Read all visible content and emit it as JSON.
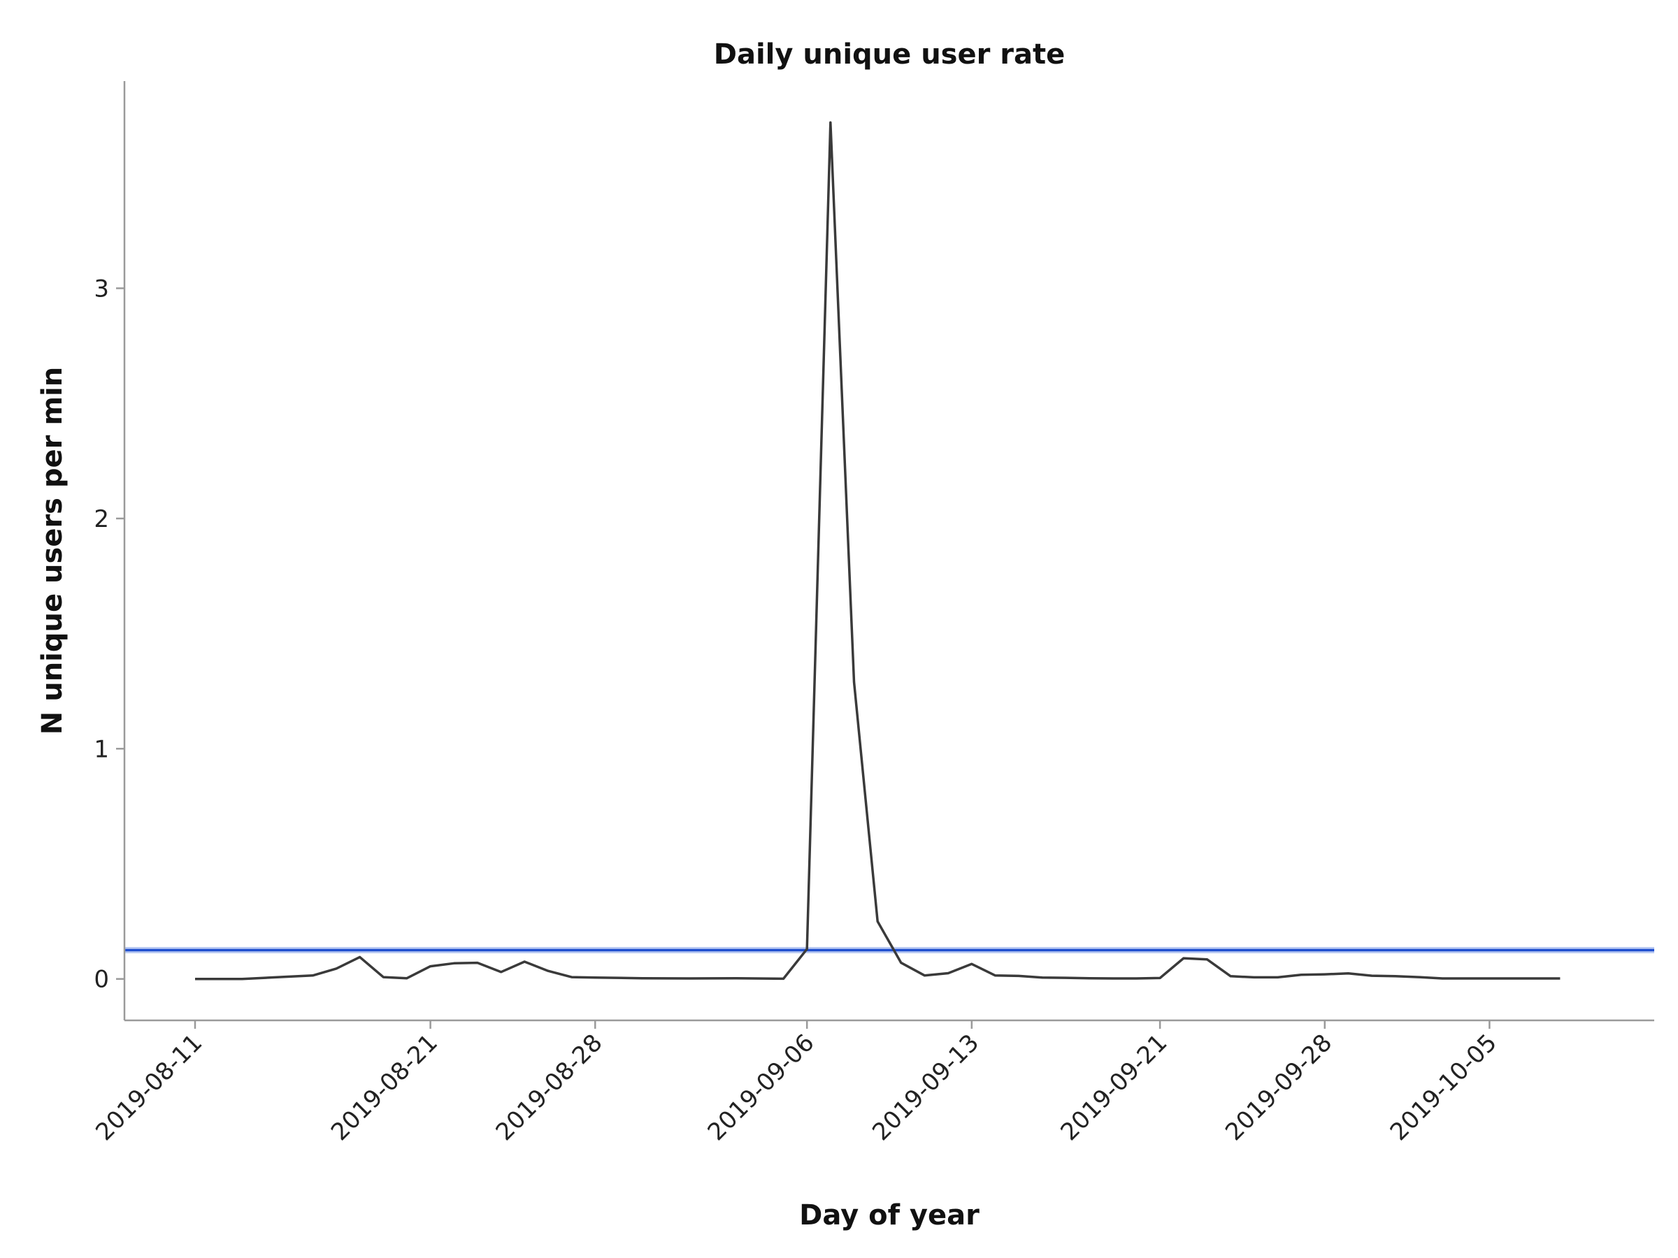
{
  "chart_data": {
    "type": "line",
    "title": "Daily unique user rate",
    "xlabel": "Day of year",
    "ylabel": "N unique users per min",
    "x_tick_labels": [
      "2019-08-11",
      "2019-08-21",
      "2019-08-28",
      "2019-09-06",
      "2019-09-13",
      "2019-09-21",
      "2019-09-28",
      "2019-10-05"
    ],
    "y_ticks": [
      0,
      1,
      2,
      3
    ],
    "ylim": [
      -0.18,
      3.9
    ],
    "xlim": [
      "2019-08-08",
      "2019-10-12"
    ],
    "grid": false,
    "reference_line": {
      "y": 0.125,
      "color": "#1f4fcf"
    },
    "series": [
      {
        "color": "#3a3a3a",
        "x": [
          "2019-08-11",
          "2019-08-13",
          "2019-08-15",
          "2019-08-16",
          "2019-08-17",
          "2019-08-18",
          "2019-08-19",
          "2019-08-20",
          "2019-08-21",
          "2019-08-22",
          "2019-08-23",
          "2019-08-24",
          "2019-08-25",
          "2019-08-26",
          "2019-08-27",
          "2019-08-28",
          "2019-08-30",
          "2019-09-01",
          "2019-09-03",
          "2019-09-05",
          "2019-09-06",
          "2019-09-07",
          "2019-09-08",
          "2019-09-09",
          "2019-09-10",
          "2019-09-11",
          "2019-09-12",
          "2019-09-13",
          "2019-09-14",
          "2019-09-15",
          "2019-09-16",
          "2019-09-17",
          "2019-09-18",
          "2019-09-19",
          "2019-09-20",
          "2019-09-21",
          "2019-09-22",
          "2019-09-23",
          "2019-09-24",
          "2019-09-25",
          "2019-09-26",
          "2019-09-27",
          "2019-09-28",
          "2019-09-29",
          "2019-09-30",
          "2019-10-01",
          "2019-10-02",
          "2019-10-03",
          "2019-10-04",
          "2019-10-05",
          "2019-10-06",
          "2019-10-07",
          "2019-10-08"
        ],
        "y": [
          0.0,
          0.0,
          0.01,
          0.015,
          0.045,
          0.095,
          0.008,
          0.003,
          0.055,
          0.068,
          0.07,
          0.03,
          0.075,
          0.035,
          0.008,
          0.006,
          0.003,
          0.002,
          0.003,
          0.001,
          0.13,
          3.72,
          1.29,
          0.25,
          0.07,
          0.015,
          0.025,
          0.065,
          0.015,
          0.013,
          0.006,
          0.005,
          0.003,
          0.002,
          0.002,
          0.004,
          0.09,
          0.085,
          0.012,
          0.007,
          0.007,
          0.018,
          0.02,
          0.024,
          0.014,
          0.012,
          0.008,
          0.002,
          0.002,
          0.002,
          0.002,
          0.002,
          0.002
        ]
      }
    ]
  }
}
